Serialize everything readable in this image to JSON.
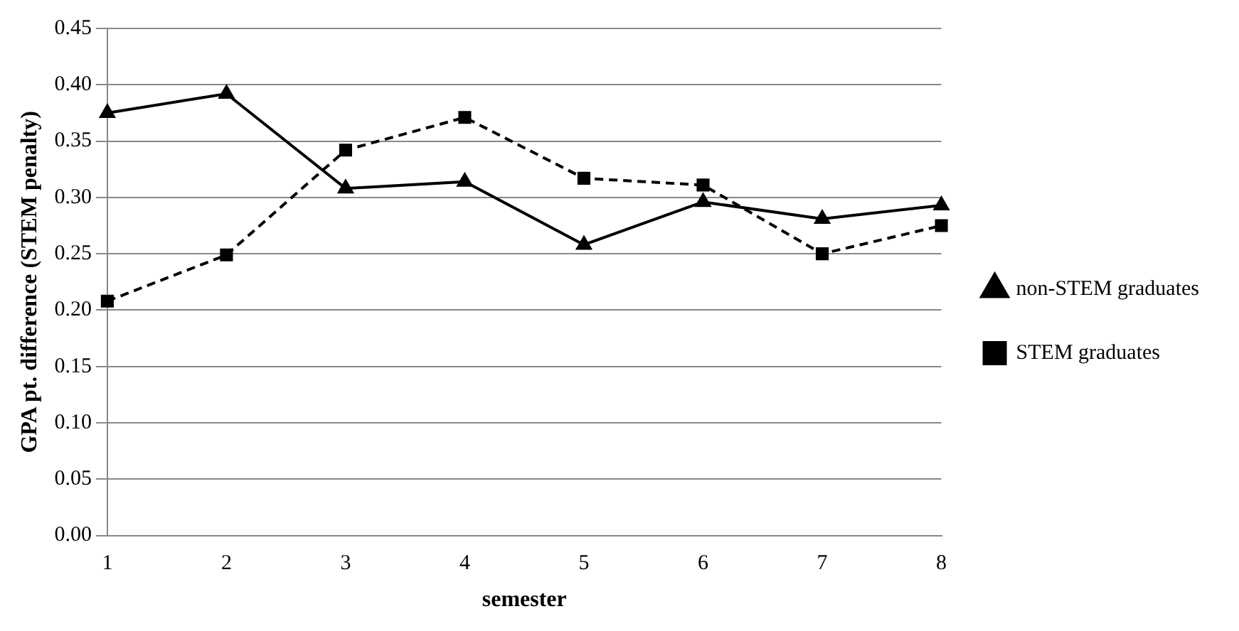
{
  "chart_data": {
    "type": "line",
    "xlabel": "semester",
    "ylabel": "GPA pt. difference (STEM penalty)",
    "categories": [
      "1",
      "2",
      "3",
      "4",
      "5",
      "6",
      "7",
      "8"
    ],
    "series": [
      {
        "name": "non-STEM graduates",
        "color": "#000000",
        "marker": "triangle",
        "line_style": "solid",
        "values": [
          0.375,
          0.392,
          0.308,
          0.314,
          0.258,
          0.296,
          0.281,
          0.293
        ]
      },
      {
        "name": "STEM graduates",
        "color": "#000000",
        "marker": "square",
        "line_style": "dashed",
        "values": [
          0.208,
          0.249,
          0.342,
          0.371,
          0.317,
          0.311,
          0.25,
          0.275
        ]
      }
    ],
    "ylim": [
      0,
      0.45
    ],
    "yticks": [
      {
        "value": 0,
        "label": "0.00"
      },
      0.05,
      {
        "value": 0.1,
        "label": "0.10"
      },
      0.15,
      {
        "value": 0.2,
        "label": "0.20"
      },
      0.25,
      {
        "value": 0.3,
        "label": "0.30"
      },
      0.35,
      {
        "value": 0.4,
        "label": "0.40"
      },
      0.45
    ],
    "grid": "y",
    "legend": "right"
  }
}
